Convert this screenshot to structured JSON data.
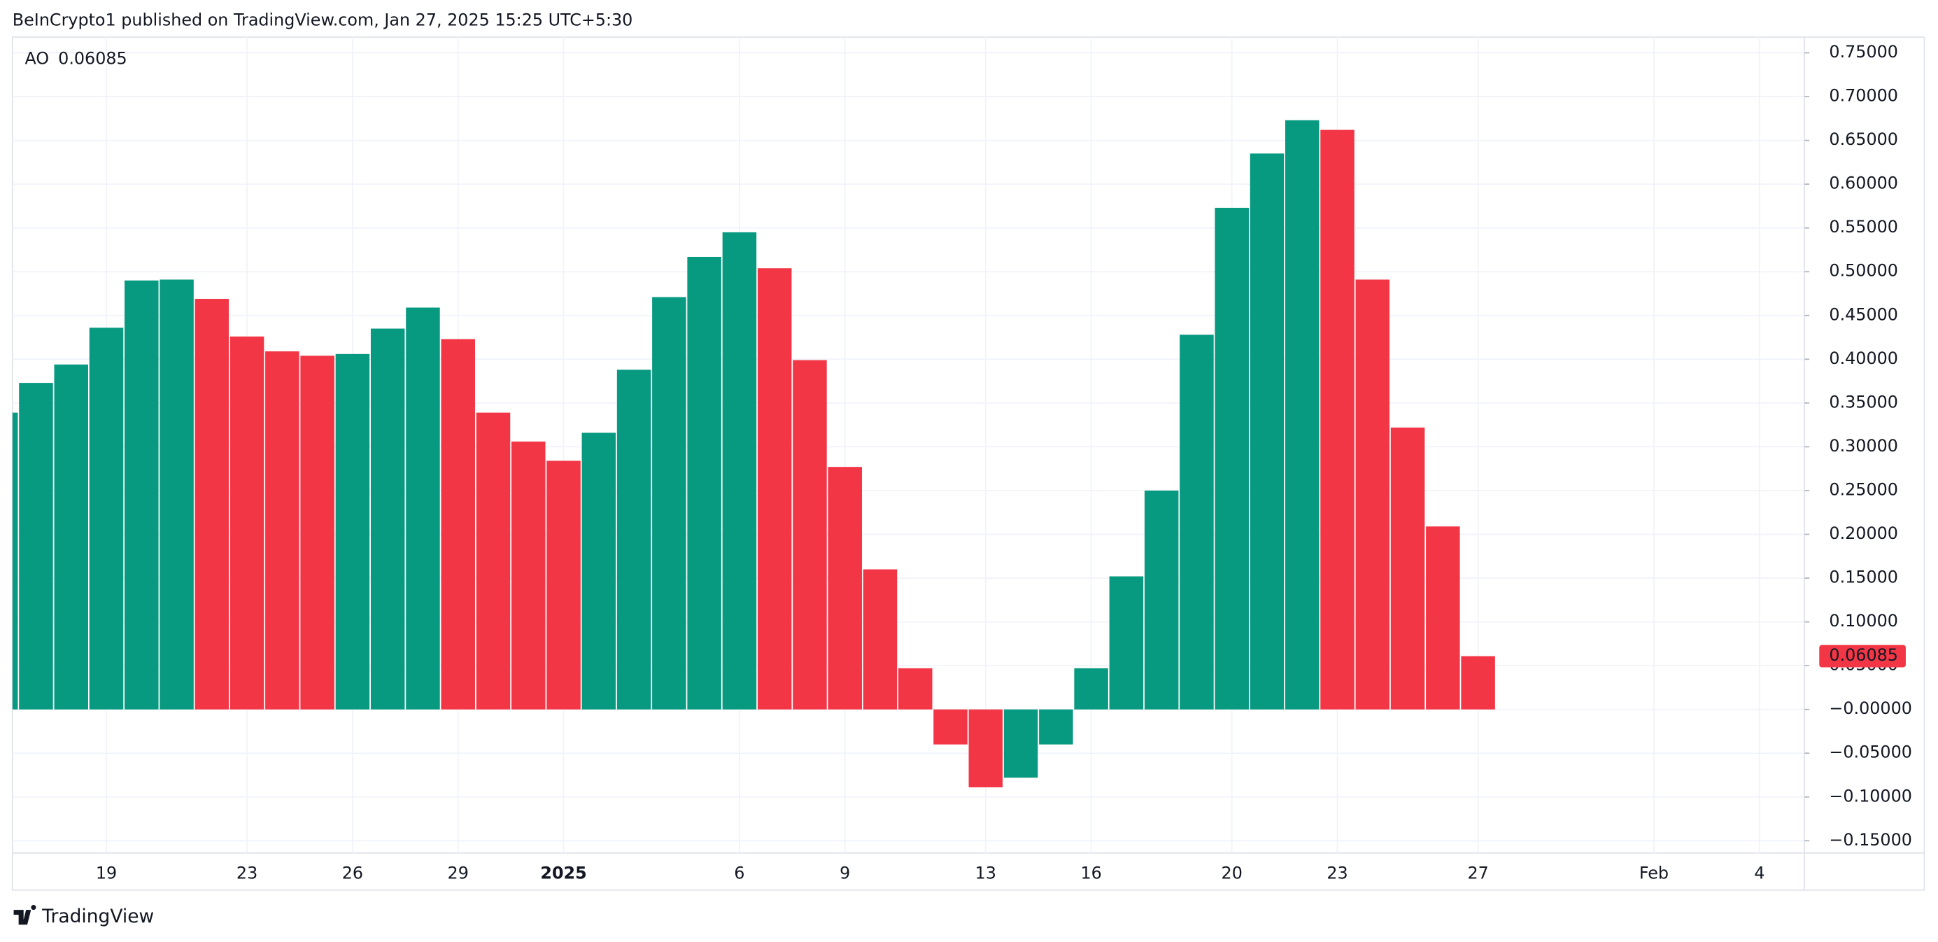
{
  "header": {
    "text": "BeInCrypto1 published on TradingView.com, Jan 27, 2025 15:25 UTC+5:30"
  },
  "footer": {
    "brand": "TradingView"
  },
  "chart_data": {
    "type": "bar",
    "series_name": "AO",
    "categories": [
      null,
      null,
      null,
      "19",
      null,
      null,
      null,
      "23",
      null,
      null,
      "26",
      null,
      null,
      "29",
      null,
      null,
      "2025",
      null,
      null,
      null,
      null,
      "6",
      null,
      null,
      "9",
      null,
      null,
      null,
      "13",
      null,
      null,
      "16",
      null,
      null,
      null,
      "20",
      null,
      null,
      "23",
      null,
      null,
      null,
      "27",
      null,
      null,
      null,
      null,
      "Feb",
      null,
      null,
      "4"
    ],
    "values": [
      0.339,
      0.373,
      0.394,
      0.436,
      0.49,
      0.491,
      0.469,
      0.426,
      0.409,
      0.404,
      0.406,
      0.435,
      0.459,
      0.423,
      0.339,
      0.306,
      0.284,
      0.316,
      0.388,
      0.471,
      0.517,
      0.545,
      0.504,
      0.399,
      0.277,
      0.16,
      0.047,
      -0.04,
      -0.089,
      -0.078,
      -0.04,
      0.047,
      0.152,
      0.25,
      0.428,
      0.573,
      0.635,
      0.673,
      0.662,
      0.491,
      0.322,
      0.209,
      0.06085,
      null,
      null,
      null,
      null,
      null,
      null,
      null,
      null
    ],
    "colors": [
      "#089981",
      "#089981",
      "#089981",
      "#089981",
      "#089981",
      "#089981",
      "#f23645",
      "#f23645",
      "#f23645",
      "#f23645",
      "#089981",
      "#089981",
      "#089981",
      "#f23645",
      "#f23645",
      "#f23645",
      "#f23645",
      "#089981",
      "#089981",
      "#089981",
      "#089981",
      "#089981",
      "#f23645",
      "#f23645",
      "#f23645",
      "#f23645",
      "#f23645",
      "#f23645",
      "#f23645",
      "#089981",
      "#089981",
      "#089981",
      "#089981",
      "#089981",
      "#089981",
      "#089981",
      "#089981",
      "#089981",
      "#f23645",
      "#f23645",
      "#f23645",
      "#f23645",
      "#f23645",
      null,
      null,
      null,
      null,
      null,
      null,
      null,
      null
    ],
    "ylim": [
      -0.164,
      0.768
    ],
    "yticks": [
      {
        "value": 0.75,
        "label": "0.75000"
      },
      {
        "value": 0.7,
        "label": "0.70000"
      },
      {
        "value": 0.65,
        "label": "0.65000"
      },
      {
        "value": 0.6,
        "label": "0.60000"
      },
      {
        "value": 0.55,
        "label": "0.55000"
      },
      {
        "value": 0.5,
        "label": "0.50000"
      },
      {
        "value": 0.45,
        "label": "0.45000"
      },
      {
        "value": 0.4,
        "label": "0.40000"
      },
      {
        "value": 0.35,
        "label": "0.35000"
      },
      {
        "value": 0.3,
        "label": "0.30000"
      },
      {
        "value": 0.25,
        "label": "0.25000"
      },
      {
        "value": 0.2,
        "label": "0.20000"
      },
      {
        "value": 0.15,
        "label": "0.15000"
      },
      {
        "value": 0.1,
        "label": "0.10000"
      },
      {
        "value": 0.05,
        "label": "0.05000"
      },
      {
        "value": 0,
        "label": "−0.00000"
      },
      {
        "value": -0.05,
        "label": "−0.05000"
      },
      {
        "value": -0.1,
        "label": "−0.10000"
      },
      {
        "value": -0.15,
        "label": "−0.15000"
      }
    ],
    "grid": true
  }
}
